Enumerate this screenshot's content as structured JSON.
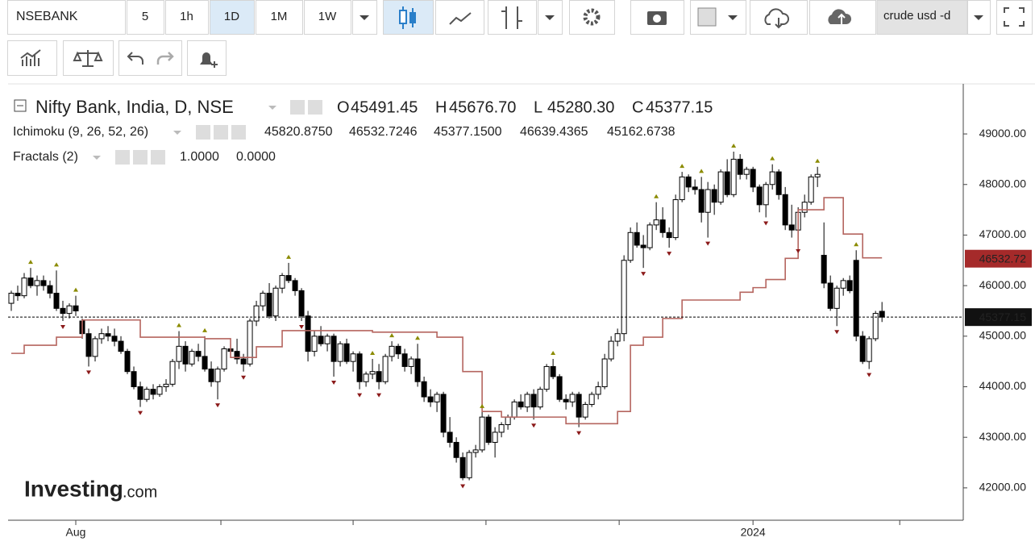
{
  "toolbar": {
    "symbol": "NSEBANK",
    "intervals": [
      "5",
      "1h",
      "1D",
      "1M",
      "1W"
    ],
    "active_interval": 2,
    "search": "crude usd -d"
  },
  "chart_data": {
    "type": "candlestick",
    "title": "Nifty Bank, India, D, NSE",
    "ohlc_prefixes": [
      "O",
      "H",
      "L",
      "C"
    ],
    "ohlc_labels": [
      "45491.45",
      "45676.70",
      "45280.30",
      "45377.15"
    ],
    "indicators": [
      {
        "name": "Ichimoku (9, 26, 52, 26)",
        "values": [
          45820.875,
          46532.7246,
          45377.15,
          46639.4365,
          45162.6738
        ],
        "value_labels": [
          "45820.8750",
          "46532.7246",
          "45377.1500",
          "46639.4365",
          "45162.6738"
        ],
        "colors": [
          "#2e8fd8",
          "#a33a3a",
          "#3c9b3c",
          "#1c7a1c",
          "#d42a2a"
        ]
      },
      {
        "name": "Fractals (2)",
        "values": [
          1,
          0
        ],
        "value_labels": [
          "1.0000",
          "0.0000"
        ],
        "colors": [
          "#8b1a1a",
          "#8b8b00"
        ]
      }
    ],
    "series": [
      {
        "name": "Nifty Bank",
        "up_color": "#ffffff",
        "down_color": "#000000",
        "values": [
          [
            45650,
            45900,
            45500,
            45850
          ],
          [
            45850,
            46000,
            45700,
            45800
          ],
          [
            45800,
            46250,
            45750,
            46150
          ],
          [
            46150,
            46350,
            45950,
            46000
          ],
          [
            46000,
            46200,
            45800,
            46100
          ],
          [
            46100,
            46200,
            45900,
            46000
          ],
          [
            46000,
            46100,
            45750,
            45850
          ],
          [
            45850,
            46300,
            45500,
            45550
          ],
          [
            45550,
            45700,
            45300,
            45450
          ],
          [
            45450,
            45650,
            45350,
            45600
          ],
          [
            45600,
            45800,
            45400,
            45500
          ],
          [
            45300,
            45350,
            44950,
            45050
          ],
          [
            45050,
            45150,
            44400,
            44600
          ],
          [
            44600,
            45000,
            44500,
            44950
          ],
          [
            44950,
            45150,
            44850,
            45050
          ],
          [
            45050,
            45200,
            44900,
            45000
          ],
          [
            45000,
            45150,
            44800,
            44900
          ],
          [
            44900,
            45000,
            44650,
            44700
          ],
          [
            44700,
            44750,
            44250,
            44300
          ],
          [
            44300,
            44400,
            43950,
            44000
          ],
          [
            44000,
            44100,
            43600,
            43750
          ],
          [
            43750,
            44000,
            43700,
            43950
          ],
          [
            43950,
            44050,
            43750,
            43850
          ],
          [
            43850,
            44050,
            43800,
            44000
          ],
          [
            44000,
            44150,
            43900,
            44050
          ],
          [
            44050,
            44550,
            44000,
            44500
          ],
          [
            44500,
            45100,
            44350,
            44800
          ],
          [
            44800,
            44900,
            44300,
            44450
          ],
          [
            44450,
            44750,
            44400,
            44700
          ],
          [
            44700,
            44850,
            44500,
            44600
          ],
          [
            44600,
            45000,
            44300,
            44350
          ],
          [
            44350,
            44500,
            44000,
            44100
          ],
          [
            44100,
            44400,
            43750,
            44350
          ],
          [
            44350,
            44800,
            44300,
            44750
          ],
          [
            44750,
            44850,
            44600,
            44700
          ],
          [
            44700,
            44950,
            44450,
            44550
          ],
          [
            44550,
            44650,
            44300,
            44450
          ],
          [
            44450,
            45350,
            44400,
            45300
          ],
          [
            45300,
            45700,
            45200,
            45600
          ],
          [
            45600,
            45900,
            45500,
            45850
          ],
          [
            45850,
            46050,
            45350,
            45400
          ],
          [
            45400,
            46000,
            45300,
            45950
          ],
          [
            45950,
            46250,
            45850,
            46200
          ],
          [
            46200,
            46450,
            46050,
            46100
          ],
          [
            46100,
            46150,
            45800,
            45900
          ],
          [
            45900,
            45950,
            45300,
            45400
          ],
          [
            45400,
            45500,
            44500,
            44700
          ],
          [
            44700,
            45100,
            44600,
            45000
          ],
          [
            45000,
            45200,
            44800,
            44850
          ],
          [
            44850,
            45050,
            44700,
            45000
          ],
          [
            45000,
            45050,
            44200,
            44500
          ],
          [
            44500,
            44900,
            44400,
            44850
          ],
          [
            44850,
            44950,
            44450,
            44500
          ],
          [
            44500,
            44700,
            44300,
            44650
          ],
          [
            44650,
            44700,
            43950,
            44100
          ],
          [
            44100,
            44300,
            44000,
            44250
          ],
          [
            44250,
            44550,
            44150,
            44300
          ],
          [
            44300,
            44450,
            43950,
            44100
          ],
          [
            44100,
            44650,
            44050,
            44600
          ],
          [
            44600,
            44900,
            44500,
            44800
          ],
          [
            44800,
            44850,
            44550,
            44650
          ],
          [
            44650,
            44750,
            44300,
            44400
          ],
          [
            44400,
            44600,
            44250,
            44550
          ],
          [
            44550,
            44850,
            44000,
            44100
          ],
          [
            44100,
            44200,
            43700,
            43800
          ],
          [
            43800,
            43950,
            43600,
            43700
          ],
          [
            43700,
            43900,
            43500,
            43850
          ],
          [
            43850,
            43900,
            43000,
            43100
          ],
          [
            43100,
            43400,
            42800,
            42900
          ],
          [
            42900,
            43000,
            42500,
            42600
          ],
          [
            42600,
            42700,
            42150,
            42200
          ],
          [
            42200,
            42750,
            42150,
            42700
          ],
          [
            42700,
            42850,
            42600,
            42750
          ],
          [
            42750,
            43500,
            42700,
            43400
          ],
          [
            43400,
            43450,
            42850,
            42900
          ],
          [
            42900,
            43200,
            42600,
            43100
          ],
          [
            43100,
            43300,
            43000,
            43250
          ],
          [
            43250,
            43450,
            43150,
            43400
          ],
          [
            43400,
            43750,
            43350,
            43700
          ],
          [
            43700,
            43850,
            43550,
            43600
          ],
          [
            43600,
            43900,
            43500,
            43850
          ],
          [
            43850,
            43950,
            43350,
            43600
          ],
          [
            43600,
            44000,
            43550,
            43950
          ],
          [
            43950,
            44450,
            43900,
            44400
          ],
          [
            44400,
            44550,
            44150,
            44200
          ],
          [
            44200,
            44250,
            43700,
            43750
          ],
          [
            43750,
            43850,
            43550,
            43700
          ],
          [
            43700,
            43900,
            43600,
            43850
          ],
          [
            43850,
            43900,
            43200,
            43400
          ],
          [
            43400,
            43700,
            43350,
            43650
          ],
          [
            43650,
            43900,
            43600,
            43850
          ],
          [
            43850,
            44100,
            43750,
            44000
          ],
          [
            44000,
            44650,
            43950,
            44550
          ],
          [
            44550,
            45000,
            44500,
            44900
          ],
          [
            44900,
            45150,
            44800,
            45050
          ],
          [
            45050,
            46600,
            44900,
            46500
          ],
          [
            46500,
            47150,
            46450,
            47050
          ],
          [
            47050,
            47250,
            46750,
            46800
          ],
          [
            46800,
            47000,
            46350,
            46750
          ],
          [
            46750,
            47250,
            46700,
            47200
          ],
          [
            47200,
            47650,
            47100,
            47300
          ],
          [
            47300,
            47550,
            46950,
            47050
          ],
          [
            47050,
            47150,
            46750,
            46950
          ],
          [
            46950,
            47800,
            46900,
            47700
          ],
          [
            47700,
            48250,
            47650,
            48150
          ],
          [
            48150,
            48200,
            47850,
            47950
          ],
          [
            47950,
            48100,
            47800,
            47900
          ],
          [
            47900,
            48150,
            47250,
            47450
          ],
          [
            47450,
            48050,
            46950,
            47900
          ],
          [
            47900,
            48000,
            47400,
            47650
          ],
          [
            47650,
            48300,
            47600,
            48250
          ],
          [
            48250,
            48500,
            47750,
            47800
          ],
          [
            47800,
            48650,
            47750,
            48500
          ],
          [
            48500,
            48600,
            48100,
            48200
          ],
          [
            48200,
            48350,
            48100,
            48300
          ],
          [
            48300,
            48350,
            47850,
            47950
          ],
          [
            47950,
            48000,
            47450,
            47600
          ],
          [
            47600,
            48050,
            47350,
            48000
          ],
          [
            48000,
            48400,
            47900,
            48250
          ],
          [
            48250,
            48300,
            47700,
            47800
          ],
          [
            47800,
            47950,
            47100,
            47200
          ],
          [
            47200,
            47600,
            46950,
            47100
          ],
          [
            47100,
            47550,
            46800,
            47450
          ],
          [
            47450,
            47800,
            47350,
            47650
          ],
          [
            47650,
            48200,
            47600,
            48150
          ],
          [
            48150,
            48350,
            47950,
            48200
          ],
          [
            46600,
            47250,
            45950,
            46050
          ],
          [
            46050,
            46200,
            45500,
            45550
          ],
          [
            45550,
            46000,
            45200,
            45950
          ],
          [
            45950,
            46150,
            45800,
            46100
          ],
          [
            46100,
            46200,
            45850,
            45900
          ],
          [
            46500,
            46700,
            44900,
            45000
          ],
          [
            45000,
            45100,
            44450,
            44500
          ],
          [
            44500,
            45000,
            44350,
            44950
          ],
          [
            44950,
            45500,
            44900,
            45450
          ],
          [
            45491.45,
            45676.7,
            45280.3,
            45377.15
          ]
        ]
      },
      {
        "name": "Kijun",
        "color": "#b5655f",
        "x": [
          0,
          2,
          7,
          11,
          20,
          30,
          34,
          38,
          42,
          56,
          66,
          70,
          73,
          76,
          86,
          88,
          94,
          96,
          98,
          101,
          104,
          113,
          115,
          117,
          120,
          122,
          126,
          129,
          132,
          135
        ],
        "values": [
          44660,
          44820,
          44980,
          45320,
          44980,
          44950,
          44580,
          44790,
          45110,
          45080,
          44980,
          44300,
          43510,
          43400,
          43270,
          43270,
          43510,
          44820,
          44980,
          45350,
          45715,
          45870,
          45960,
          46120,
          46540,
          47500,
          47740,
          47020,
          46550,
          46550
        ]
      }
    ],
    "fractals_up": [
      3,
      7,
      10,
      26,
      30,
      43,
      56,
      59,
      63,
      73,
      84,
      100,
      104,
      107,
      112,
      118,
      125,
      131
    ],
    "fractals_down": [
      8,
      12,
      20,
      32,
      36,
      45,
      50,
      54,
      57,
      70,
      81,
      88,
      98,
      102,
      108,
      117,
      122,
      128,
      133
    ],
    "fractal_up_color": "#8b8b00",
    "fractal_down_color": "#8b1a1a",
    "price_tags": [
      {
        "value": 46532.72,
        "color": "#a52a2a"
      },
      {
        "value": 45377.15,
        "color": "#111111"
      }
    ],
    "xlim": [
      -0.5,
      147.6
    ],
    "xticks": [
      {
        "value": 10,
        "label": "Aug"
      },
      32.5,
      53,
      73.6,
      94.25,
      {
        "value": 115,
        "label": "2024"
      },
      137.75
    ],
    "ylim": [
      41360,
      49990
    ],
    "yticks": [
      {
        "value": 42000,
        "label": "42000.00"
      },
      {
        "value": 43000,
        "label": "43000.00"
      },
      {
        "value": 44000,
        "label": "44000.00"
      },
      {
        "value": 45000,
        "label": "45000.00"
      },
      {
        "value": 46000,
        "label": "46000.00"
      },
      {
        "value": 47000,
        "label": "47000.00"
      },
      {
        "value": 48000,
        "label": "48000.00"
      },
      {
        "value": 49000,
        "label": "49000.00"
      }
    ],
    "logo": [
      "Investing",
      ".com"
    ]
  }
}
